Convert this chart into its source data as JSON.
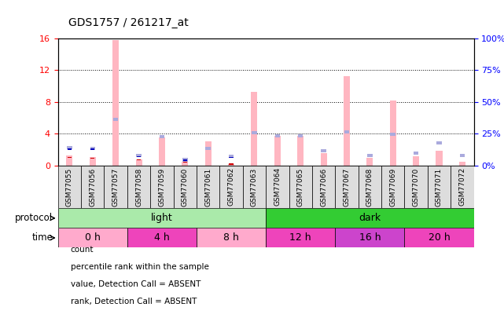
{
  "title": "GDS1757 / 261217_at",
  "samples": [
    "GSM77055",
    "GSM77056",
    "GSM77057",
    "GSM77058",
    "GSM77059",
    "GSM77060",
    "GSM77061",
    "GSM77062",
    "GSM77063",
    "GSM77064",
    "GSM77065",
    "GSM77066",
    "GSM77067",
    "GSM77068",
    "GSM77069",
    "GSM77070",
    "GSM77071",
    "GSM77072"
  ],
  "value_absent": [
    1.2,
    1.0,
    15.8,
    0.8,
    3.5,
    0.5,
    3.0,
    0.2,
    9.2,
    3.7,
    3.7,
    1.5,
    11.2,
    0.9,
    8.2,
    1.1,
    1.8,
    0.5
  ],
  "rank_absent": [
    2.2,
    2.1,
    5.8,
    1.2,
    3.6,
    0.7,
    2.1,
    1.1,
    4.1,
    3.7,
    3.7,
    1.8,
    4.2,
    1.2,
    3.9,
    1.5,
    2.8,
    1.2
  ],
  "count_val": [
    1.0,
    0.9,
    null,
    0.7,
    null,
    0.4,
    null,
    0.15,
    null,
    null,
    null,
    null,
    null,
    null,
    null,
    null,
    null,
    null
  ],
  "percentile_val": [
    2.0,
    2.0,
    null,
    1.1,
    null,
    0.65,
    null,
    1.0,
    null,
    null,
    null,
    null,
    null,
    null,
    null,
    null,
    null,
    null
  ],
  "protocol_groups": [
    {
      "label": "light",
      "start": 0,
      "end": 9,
      "color": "#AAEAAA"
    },
    {
      "label": "dark",
      "start": 9,
      "end": 18,
      "color": "#33CC33"
    }
  ],
  "time_groups": [
    {
      "label": "0 h",
      "start": 0,
      "end": 3,
      "color": "#FFAACC"
    },
    {
      "label": "4 h",
      "start": 3,
      "end": 6,
      "color": "#EE44BB"
    },
    {
      "label": "8 h",
      "start": 6,
      "end": 9,
      "color": "#FFAACC"
    },
    {
      "label": "12 h",
      "start": 9,
      "end": 12,
      "color": "#EE44BB"
    },
    {
      "label": "16 h",
      "start": 12,
      "end": 15,
      "color": "#CC44CC"
    },
    {
      "label": "20 h",
      "start": 15,
      "end": 18,
      "color": "#EE44BB"
    }
  ],
  "ylim_left": [
    0,
    16
  ],
  "ylim_right": [
    0,
    100
  ],
  "yticks_left": [
    0,
    4,
    8,
    12,
    16
  ],
  "yticks_right": [
    0,
    25,
    50,
    75,
    100
  ],
  "color_value_absent": "#FFB6C1",
  "color_rank_absent": "#AAAADD",
  "color_count": "#CC0000",
  "color_percentile": "#0000BB"
}
